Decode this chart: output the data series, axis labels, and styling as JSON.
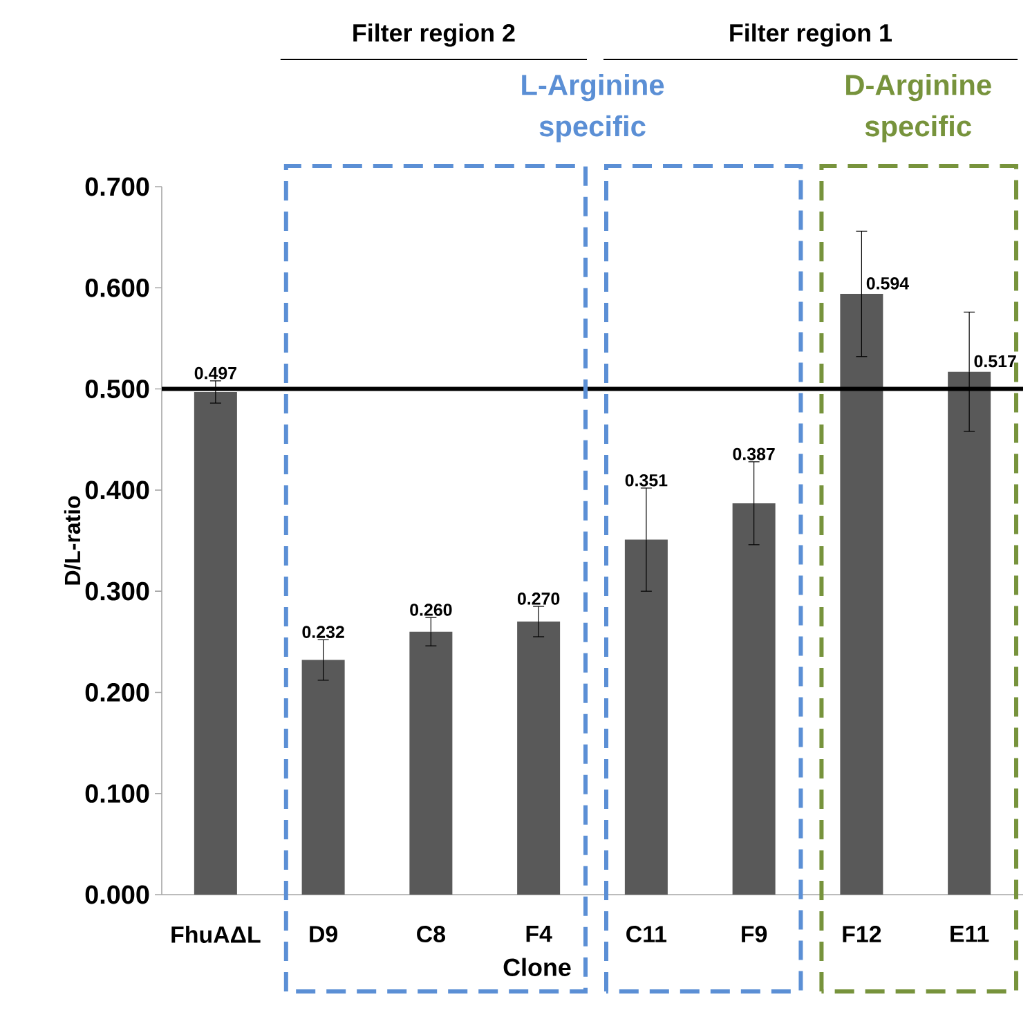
{
  "chart_data": {
    "type": "bar",
    "xlabel": "Clone",
    "ylabel": "D/L-ratio",
    "categories": [
      "FhuAΔL",
      "D9",
      "C8",
      "F4",
      "C11",
      "F9",
      "F12",
      "E11"
    ],
    "values": [
      0.497,
      0.232,
      0.26,
      0.27,
      0.351,
      0.387,
      0.594,
      0.517
    ],
    "errors": [
      0.011,
      0.02,
      0.014,
      0.015,
      0.051,
      0.041,
      0.062,
      0.059
    ],
    "value_labels": [
      "0.497",
      "0.232",
      "0.260",
      "0.270",
      "0.351",
      "0.387",
      "0.594",
      "0.517"
    ],
    "color": "#595959",
    "ylim": [
      0,
      0.7
    ],
    "yticks": [
      {
        "value": 0,
        "label": "0.000"
      },
      {
        "value": 0.1,
        "label": "0.100"
      },
      {
        "value": 0.2,
        "label": "0.200"
      },
      {
        "value": 0.3,
        "label": "0.300"
      },
      {
        "value": 0.4,
        "label": "0.400"
      },
      {
        "value": 0.5,
        "label": "0.500"
      },
      {
        "value": 0.6,
        "label": "0.600"
      },
      {
        "value": 0.7,
        "label": "0.700"
      }
    ],
    "ref_lines": [
      {
        "axis": "y",
        "value": 0.5,
        "color": "#000000"
      }
    ],
    "annotations": [
      "Filter region 2",
      "Filter region 1",
      "L-Arginine specific",
      "D-Arginine specific"
    ]
  }
}
